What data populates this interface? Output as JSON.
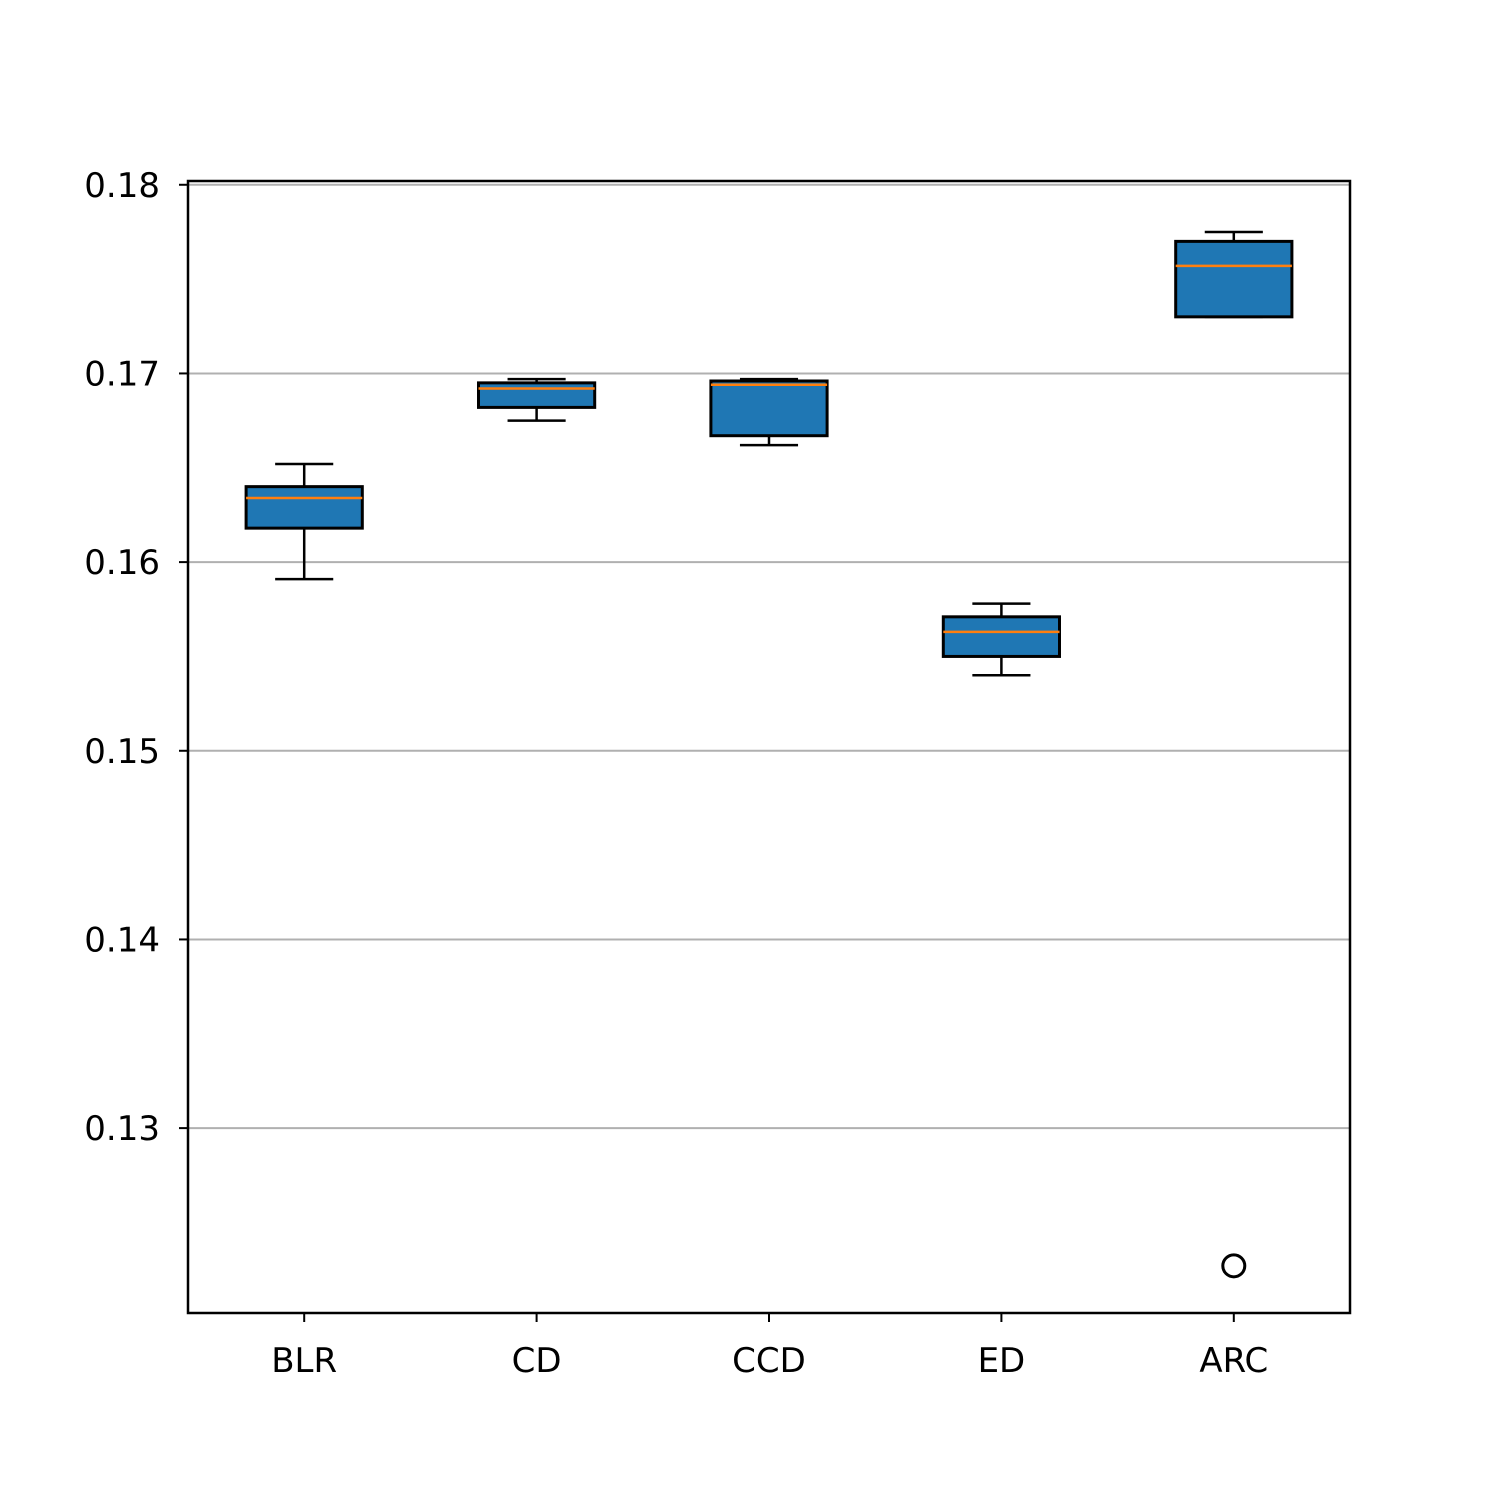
{
  "chart_data": {
    "type": "boxplot",
    "title": "",
    "xlabel": "",
    "ylabel": "",
    "ylim": [
      0.1202,
      0.1802
    ],
    "grid": "y",
    "yticks": [
      {
        "value": 0.13,
        "label": "0.13"
      },
      {
        "value": 0.14,
        "label": "0.14"
      },
      {
        "value": 0.15,
        "label": "0.15"
      },
      {
        "value": 0.16,
        "label": "0.16"
      },
      {
        "value": 0.17,
        "label": "0.17"
      },
      {
        "value": 0.18,
        "label": "0.18"
      }
    ],
    "categories": [
      "BLR",
      "CD",
      "CCD",
      "ED",
      "ARC"
    ],
    "boxes": [
      {
        "name": "BLR",
        "whislo": 0.1591,
        "q1": 0.1618,
        "med": 0.1634,
        "q3": 0.164,
        "whishi": 0.1652,
        "fliers": []
      },
      {
        "name": "CD",
        "whislo": 0.1675,
        "q1": 0.1682,
        "med": 0.1692,
        "q3": 0.1695,
        "whishi": 0.1697,
        "fliers": []
      },
      {
        "name": "CCD",
        "whislo": 0.1662,
        "q1": 0.1667,
        "med": 0.1694,
        "q3": 0.1696,
        "whishi": 0.1697,
        "fliers": []
      },
      {
        "name": "ED",
        "whislo": 0.154,
        "q1": 0.155,
        "med": 0.1563,
        "q3": 0.1571,
        "whishi": 0.1578,
        "fliers": []
      },
      {
        "name": "ARC",
        "whislo": 0.173,
        "q1": 0.173,
        "med": 0.1757,
        "q3": 0.177,
        "whishi": 0.1775,
        "fliers": [
          0.1227
        ]
      }
    ],
    "colors": {
      "box_fill": "#1f77b4",
      "median": "#ff7f0e",
      "grid": "#b0b0b0",
      "edge": "#000000"
    }
  }
}
